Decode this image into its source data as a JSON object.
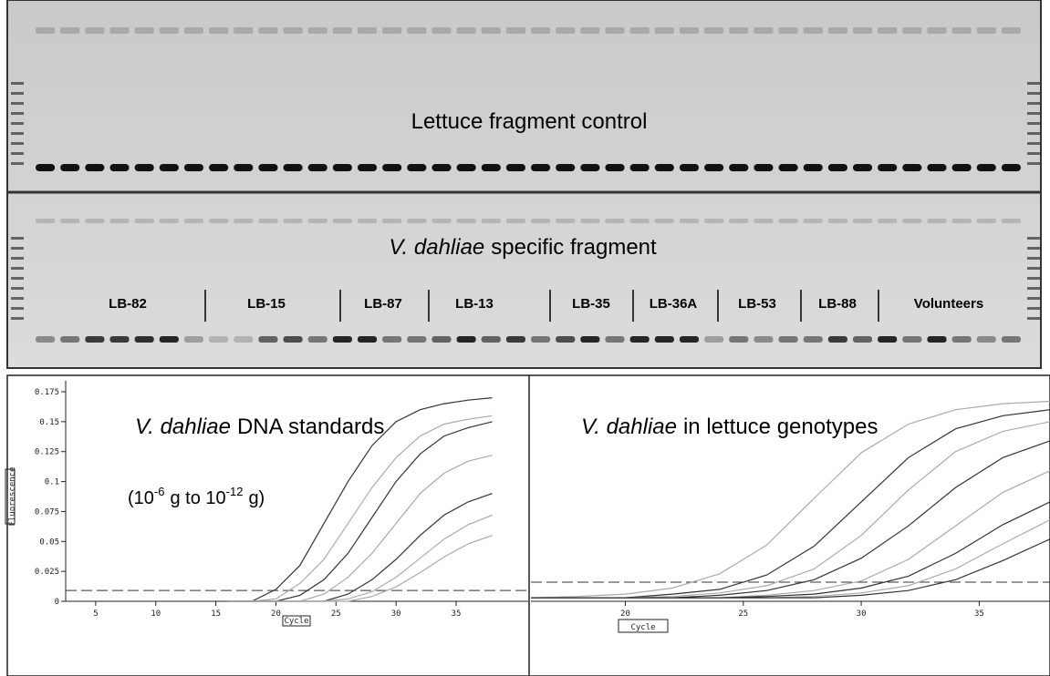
{
  "gels": [
    {
      "title": "Lettuce fragment control"
    },
    {
      "title_italic": "V. dahliae",
      "title_rest": "specific fragment",
      "groups": [
        "LB-82",
        "LB-15",
        "LB-87",
        "LB-13",
        "LB-35",
        "LB-36A",
        "LB-53",
        "LB-88",
        "Volunteers"
      ]
    }
  ],
  "chart_data": [
    {
      "type": "line",
      "title_italic": "V. dahliae",
      "title_rest": "DNA standards",
      "subtitle_parts": [
        "(10",
        "-6",
        "g to 10",
        "-12",
        "g)"
      ],
      "ylabel": "Fluorescence",
      "xlabel": "Cycle",
      "xlim": [
        2.5,
        41
      ],
      "ylim": [
        0,
        0.175
      ],
      "xticks": [
        5,
        10,
        15,
        20,
        25,
        30,
        35
      ],
      "yticks": [
        0,
        0.025,
        0.05,
        0.075,
        0.1,
        0.125,
        0.15,
        0.175
      ],
      "threshold": 0.009,
      "x": [
        16,
        18,
        20,
        22,
        24,
        26,
        28,
        30,
        32,
        34,
        36,
        38
      ],
      "series": [
        {
          "color": "#333333",
          "values": [
            0,
            0,
            0.01,
            0.03,
            0.065,
            0.1,
            0.13,
            0.15,
            0.16,
            0.165,
            0.168,
            0.17
          ]
        },
        {
          "color": "#aaaaaa",
          "values": [
            0,
            0,
            0.002,
            0.015,
            0.035,
            0.065,
            0.095,
            0.12,
            0.138,
            0.148,
            0.152,
            0.155
          ]
        },
        {
          "color": "#333333",
          "values": [
            0,
            0,
            0,
            0.005,
            0.018,
            0.04,
            0.07,
            0.1,
            0.123,
            0.138,
            0.145,
            0.15
          ]
        },
        {
          "color": "#aaaaaa",
          "values": [
            0,
            0,
            0,
            0,
            0.006,
            0.02,
            0.04,
            0.065,
            0.09,
            0.107,
            0.117,
            0.122
          ]
        },
        {
          "color": "#333333",
          "values": [
            0,
            0,
            0,
            0,
            0,
            0.006,
            0.018,
            0.035,
            0.055,
            0.072,
            0.083,
            0.09
          ]
        },
        {
          "color": "#aaaaaa",
          "values": [
            0,
            0,
            0,
            0,
            0,
            0.002,
            0.008,
            0.02,
            0.036,
            0.052,
            0.064,
            0.072
          ]
        },
        {
          "color": "#aaaaaa",
          "values": [
            0,
            0,
            0,
            0,
            0,
            0,
            0.004,
            0.012,
            0.024,
            0.037,
            0.048,
            0.055
          ]
        }
      ]
    },
    {
      "type": "line",
      "title_italic": "V. dahliae",
      "title_rest": "in lettuce genotypes",
      "xlabel": "Cycle",
      "xlim": [
        16,
        38
      ],
      "ylim": [
        0,
        0.175
      ],
      "xticks": [
        20,
        25,
        30,
        35
      ],
      "threshold": 0.016,
      "x": [
        16,
        18,
        20,
        22,
        24,
        26,
        28,
        30,
        32,
        34,
        36,
        38
      ],
      "series": [
        {
          "color": "#aaaaaa",
          "values": [
            0.003,
            0.004,
            0.006,
            0.011,
            0.023,
            0.047,
            0.086,
            0.124,
            0.148,
            0.16,
            0.165,
            0.167
          ]
        },
        {
          "color": "#333333",
          "values": [
            0.003,
            0.003,
            0.003,
            0.006,
            0.01,
            0.022,
            0.046,
            0.083,
            0.12,
            0.144,
            0.155,
            0.16
          ]
        },
        {
          "color": "#aaaaaa",
          "values": [
            0.003,
            0.003,
            0.003,
            0.004,
            0.007,
            0.013,
            0.027,
            0.055,
            0.093,
            0.125,
            0.142,
            0.15
          ]
        },
        {
          "color": "#333333",
          "values": [
            0.003,
            0.003,
            0.003,
            0.003,
            0.005,
            0.009,
            0.018,
            0.036,
            0.063,
            0.095,
            0.12,
            0.134
          ]
        },
        {
          "color": "#aaaaaa",
          "values": [
            0.003,
            0.003,
            0.003,
            0.003,
            0.003,
            0.005,
            0.009,
            0.017,
            0.035,
            0.063,
            0.091,
            0.109
          ]
        },
        {
          "color": "#333333",
          "values": [
            0.003,
            0.003,
            0.003,
            0.003,
            0.003,
            0.004,
            0.006,
            0.011,
            0.021,
            0.04,
            0.064,
            0.083
          ]
        },
        {
          "color": "#aaaaaa",
          "values": [
            0.003,
            0.003,
            0.003,
            0.003,
            0.003,
            0.003,
            0.004,
            0.007,
            0.013,
            0.027,
            0.048,
            0.068
          ]
        },
        {
          "color": "#333333",
          "values": [
            0.003,
            0.003,
            0.003,
            0.003,
            0.003,
            0.003,
            0.003,
            0.005,
            0.009,
            0.018,
            0.034,
            0.052
          ]
        }
      ]
    }
  ]
}
